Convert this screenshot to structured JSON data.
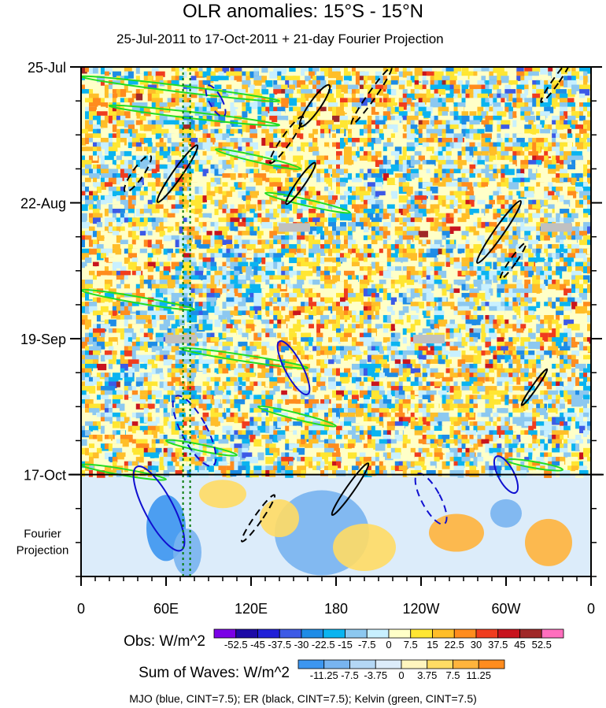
{
  "title": "OLR anomalies: 15°S - 15°N",
  "subtitle": "25-Jul-2011 to 17-Oct-2011 + 21-day Fourier Projection",
  "footer": "MJO (blue, CINT=7.5); ER (black, CINT=7.5); Kelvin (green, CINT=7.5)",
  "chart_data": {
    "type": "heatmap",
    "title": "OLR anomalies: 15°S - 15°N",
    "subtitle": "25-Jul-2011 to 17-Oct-2011 + 21-day Fourier Projection",
    "x_axis": {
      "ticks": [
        "0",
        "60E",
        "120E",
        "180",
        "120W",
        "60W",
        "0"
      ],
      "tick_longitudes_deg_east": [
        0,
        60,
        120,
        180,
        240,
        300,
        360
      ],
      "range": [
        0,
        360
      ]
    },
    "y_axis": {
      "ticks": [
        "25-Jul",
        "22-Aug",
        "19-Sep",
        "17-Oct"
      ],
      "tick_day_offsets": [
        0,
        28,
        56,
        84
      ],
      "range_days": [
        0,
        105
      ],
      "reversed": true,
      "projection_label": "Fourier Projection",
      "projection_start_day": 84,
      "projection_days": 21
    },
    "reference_longitudes_deg_east": [
      72,
      77
    ],
    "missing_blocks": [
      {
        "lon": 60,
        "day": 56
      },
      {
        "lon": 140,
        "day": 33
      },
      {
        "lon": 235,
        "day": 56
      },
      {
        "lon": 325,
        "day": 33
      }
    ],
    "obs_colorbar": {
      "label": "Obs: W/m^2",
      "levels": [
        "-52.5",
        "-45",
        "-37.5",
        "-30",
        "-22.5",
        "-15",
        "-7.5",
        "0",
        "7.5",
        "15",
        "22.5",
        "30",
        "37.5",
        "45",
        "52.5"
      ],
      "colors": [
        "#7a00e6",
        "#1c0aa6",
        "#2020d8",
        "#3c5ae6",
        "#1e8ce6",
        "#0ab4f0",
        "#8cc8f0",
        "#c8f0ff",
        "#ffffc8",
        "#ffe632",
        "#ffbe28",
        "#ff8c1e",
        "#f03c1e",
        "#c8141e",
        "#a02828",
        "#ff6ebe"
      ]
    },
    "waves_colorbar": {
      "label": "Sum of Waves: W/m^2",
      "levels": [
        "-11.25",
        "-7.5",
        "-3.75",
        "0",
        "3.75",
        "7.5",
        "11.25"
      ],
      "colors": [
        "#3c96f0",
        "#78b4f0",
        "#b4d7f5",
        "#dcecfa",
        "#fff5be",
        "#ffdc64",
        "#ffb43c",
        "#ff8c1e"
      ]
    },
    "series": [
      {
        "name": "MJO",
        "color": "#1010d0",
        "cint": 7.5
      },
      {
        "name": "ER",
        "color": "#000000",
        "cint": 7.5
      },
      {
        "name": "Kelvin",
        "color": "#22dd22",
        "cint": 7.5
      }
    ]
  }
}
